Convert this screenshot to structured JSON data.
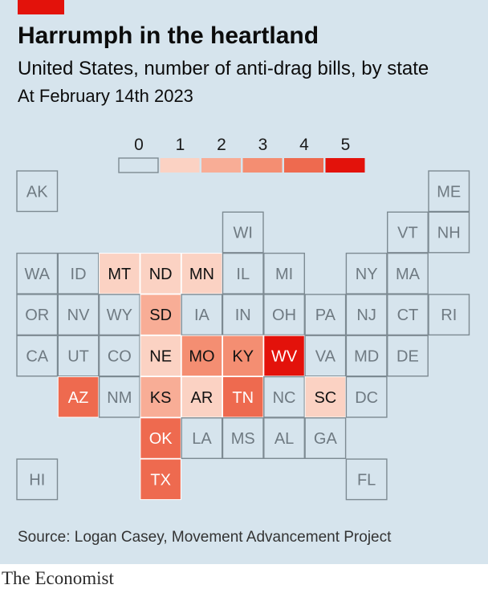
{
  "header": {
    "title": "Harrumph in the heartland",
    "subtitle": "United States, number of anti-drag bills, by state",
    "date": "At February 14th 2023"
  },
  "source": "Source: Logan Casey, Movement Advancement Project",
  "footer": "The Economist",
  "colors": {
    "background": "#d6e4ed",
    "accent_red": "#e3120b",
    "tile_border": "#7d8a92",
    "scale": [
      "#d6e4ed",
      "#fbd2c3",
      "#f8ad96",
      "#f48e72",
      "#ee6a4f",
      "#e3120b"
    ]
  },
  "chart_data": {
    "type": "heatmap",
    "title": "Harrumph in the heartland",
    "subtitle": "United States, number of anti-drag bills, by state",
    "note": "At February 14th 2023",
    "legend": {
      "values": [
        0,
        1,
        2,
        3,
        4,
        5
      ],
      "placement": "top-center"
    },
    "grid": false,
    "tiles": [
      {
        "state": "AK",
        "row": 0,
        "col": 0,
        "value": 0
      },
      {
        "state": "ME",
        "row": 0,
        "col": 10,
        "value": 0
      },
      {
        "state": "WI",
        "row": 1,
        "col": 5,
        "value": 0
      },
      {
        "state": "VT",
        "row": 1,
        "col": 9,
        "value": 0
      },
      {
        "state": "NH",
        "row": 1,
        "col": 10,
        "value": 0
      },
      {
        "state": "WA",
        "row": 2,
        "col": 0,
        "value": 0
      },
      {
        "state": "ID",
        "row": 2,
        "col": 1,
        "value": 0
      },
      {
        "state": "MT",
        "row": 2,
        "col": 2,
        "value": 1
      },
      {
        "state": "ND",
        "row": 2,
        "col": 3,
        "value": 1
      },
      {
        "state": "MN",
        "row": 2,
        "col": 4,
        "value": 1
      },
      {
        "state": "IL",
        "row": 2,
        "col": 5,
        "value": 0
      },
      {
        "state": "MI",
        "row": 2,
        "col": 6,
        "value": 0
      },
      {
        "state": "NY",
        "row": 2,
        "col": 8,
        "value": 0
      },
      {
        "state": "MA",
        "row": 2,
        "col": 9,
        "value": 0
      },
      {
        "state": "OR",
        "row": 3,
        "col": 0,
        "value": 0
      },
      {
        "state": "NV",
        "row": 3,
        "col": 1,
        "value": 0
      },
      {
        "state": "WY",
        "row": 3,
        "col": 2,
        "value": 0
      },
      {
        "state": "SD",
        "row": 3,
        "col": 3,
        "value": 2
      },
      {
        "state": "IA",
        "row": 3,
        "col": 4,
        "value": 0
      },
      {
        "state": "IN",
        "row": 3,
        "col": 5,
        "value": 0
      },
      {
        "state": "OH",
        "row": 3,
        "col": 6,
        "value": 0
      },
      {
        "state": "PA",
        "row": 3,
        "col": 7,
        "value": 0
      },
      {
        "state": "NJ",
        "row": 3,
        "col": 8,
        "value": 0
      },
      {
        "state": "CT",
        "row": 3,
        "col": 9,
        "value": 0
      },
      {
        "state": "RI",
        "row": 3,
        "col": 10,
        "value": 0
      },
      {
        "state": "CA",
        "row": 4,
        "col": 0,
        "value": 0
      },
      {
        "state": "UT",
        "row": 4,
        "col": 1,
        "value": 0
      },
      {
        "state": "CO",
        "row": 4,
        "col": 2,
        "value": 0
      },
      {
        "state": "NE",
        "row": 4,
        "col": 3,
        "value": 1
      },
      {
        "state": "MO",
        "row": 4,
        "col": 4,
        "value": 3
      },
      {
        "state": "KY",
        "row": 4,
        "col": 5,
        "value": 3
      },
      {
        "state": "WV",
        "row": 4,
        "col": 6,
        "value": 5
      },
      {
        "state": "VA",
        "row": 4,
        "col": 7,
        "value": 0
      },
      {
        "state": "MD",
        "row": 4,
        "col": 8,
        "value": 0
      },
      {
        "state": "DE",
        "row": 4,
        "col": 9,
        "value": 0
      },
      {
        "state": "AZ",
        "row": 5,
        "col": 1,
        "value": 4
      },
      {
        "state": "NM",
        "row": 5,
        "col": 2,
        "value": 0
      },
      {
        "state": "KS",
        "row": 5,
        "col": 3,
        "value": 2
      },
      {
        "state": "AR",
        "row": 5,
        "col": 4,
        "value": 1
      },
      {
        "state": "TN",
        "row": 5,
        "col": 5,
        "value": 4
      },
      {
        "state": "NC",
        "row": 5,
        "col": 6,
        "value": 0
      },
      {
        "state": "SC",
        "row": 5,
        "col": 7,
        "value": 1
      },
      {
        "state": "DC",
        "row": 5,
        "col": 8,
        "value": 0
      },
      {
        "state": "OK",
        "row": 6,
        "col": 3,
        "value": 4
      },
      {
        "state": "LA",
        "row": 6,
        "col": 4,
        "value": 0
      },
      {
        "state": "MS",
        "row": 6,
        "col": 5,
        "value": 0
      },
      {
        "state": "AL",
        "row": 6,
        "col": 6,
        "value": 0
      },
      {
        "state": "GA",
        "row": 6,
        "col": 7,
        "value": 0
      },
      {
        "state": "HI",
        "row": 7,
        "col": 0,
        "value": 0
      },
      {
        "state": "TX",
        "row": 7,
        "col": 3,
        "value": 4
      },
      {
        "state": "FL",
        "row": 7,
        "col": 8,
        "value": 0
      }
    ]
  }
}
